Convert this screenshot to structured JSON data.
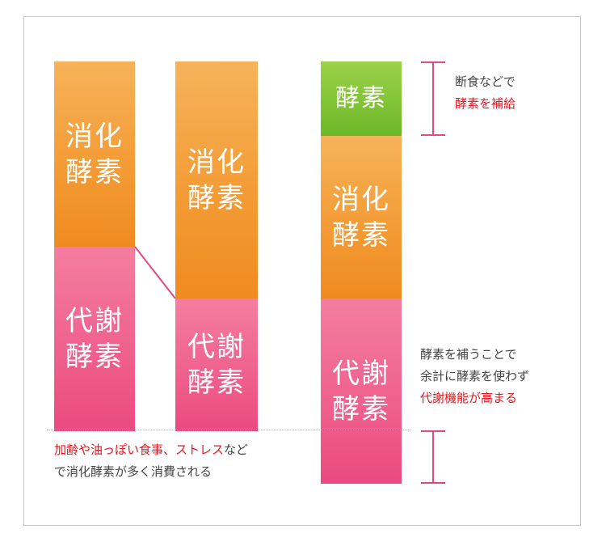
{
  "column1": {
    "digestive": [
      "消化",
      "酵素"
    ],
    "metabolic": [
      "代謝",
      "酵素"
    ]
  },
  "column2": {
    "digestive": [
      "消化",
      "酵素"
    ],
    "metabolic": [
      "代謝",
      "酵素"
    ]
  },
  "column3": {
    "enzyme": "酵素",
    "digestive": [
      "消化",
      "酵素"
    ],
    "metabolic": [
      "代謝",
      "酵素"
    ]
  },
  "notes": {
    "fasting": {
      "line1": "断食などで",
      "line2": "酵素を補給"
    },
    "supplement": {
      "line1": "酵素を補うことで",
      "line2": "余計に酵素を使わず",
      "line3": "代謝機能が高まる"
    },
    "aging": {
      "line1_red": "加齢や油っぽい食事、ストレス",
      "line1_rest": "など",
      "line2": "で消化酵素が多く消費される"
    }
  },
  "colors": {
    "orange": "#f39a33",
    "pink": "#ef5f8c",
    "green": "#7cc230",
    "accent_red": "#e8141e",
    "bracket": "#e24a7d"
  }
}
